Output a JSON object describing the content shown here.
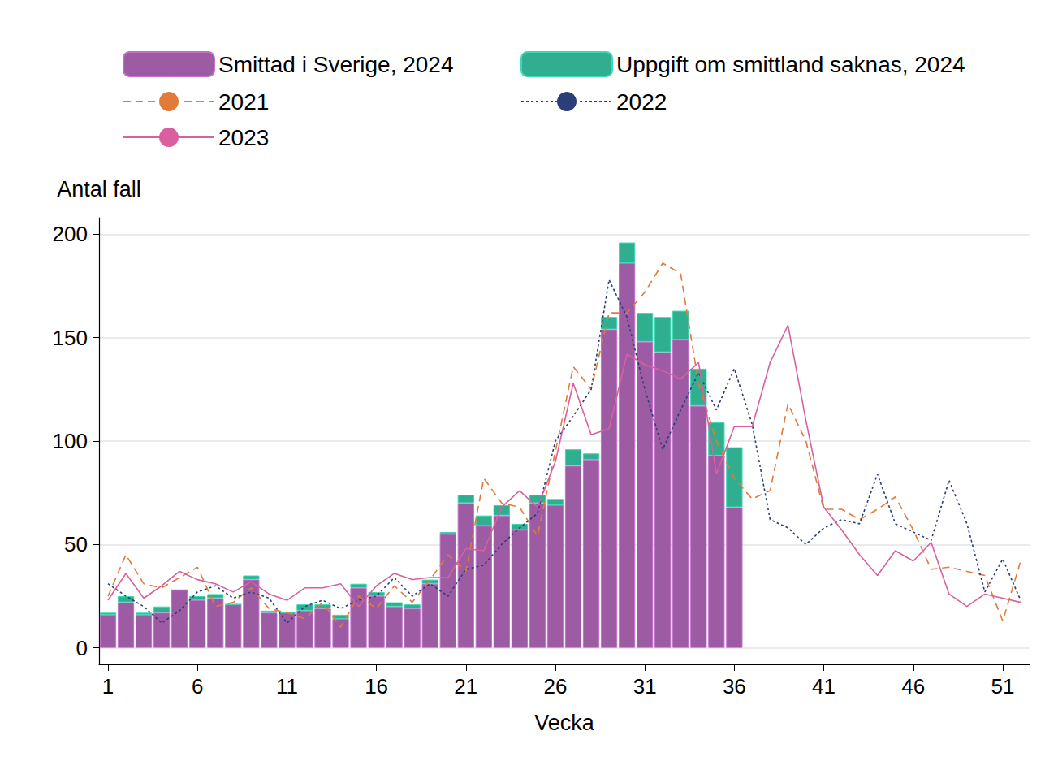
{
  "chart_data": {
    "type": "bar",
    "x_label": "Vecka",
    "y_label": "Antal fall",
    "categories": [
      1,
      null,
      null,
      null,
      null,
      6,
      null,
      null,
      null,
      null,
      11,
      null,
      null,
      null,
      null,
      16,
      null,
      null,
      null,
      null,
      21,
      null,
      null,
      null,
      null,
      26,
      null,
      null,
      null,
      null,
      31,
      null,
      null,
      null,
      null,
      36,
      null,
      null,
      null,
      null,
      41,
      null,
      null,
      null,
      null,
      46,
      null,
      null,
      null,
      null,
      51,
      null
    ],
    "stacked": true,
    "grid": true,
    "legend": "top",
    "ylim": [
      -8,
      208
    ],
    "yticks": [
      0,
      50,
      100,
      150,
      200
    ],
    "series": [
      {
        "name": "Smittad i Sverige, 2024",
        "type": "bar",
        "color": "#9c5ba2",
        "values": [
          16,
          22,
          16,
          17,
          28,
          23,
          24,
          21,
          33,
          17,
          17,
          18,
          19,
          14,
          29,
          25,
          20,
          19,
          31,
          55,
          70,
          59,
          64,
          57,
          70,
          69,
          88,
          91,
          154,
          186,
          148,
          143,
          149,
          117,
          93,
          68,
          null,
          null,
          null,
          null,
          null,
          null,
          null,
          null,
          null,
          null,
          null,
          null,
          null,
          null,
          null,
          null
        ]
      },
      {
        "name": "Uppgift om smittland saknas, 2024",
        "type": "bar",
        "color": "#2fae90",
        "values": [
          1,
          3,
          1,
          3,
          0,
          2,
          2,
          0,
          2,
          1,
          0,
          3,
          2,
          2,
          2,
          2,
          2,
          2,
          2,
          1,
          4,
          5,
          5,
          3,
          4,
          3,
          8,
          3,
          6,
          10,
          14,
          17,
          14,
          18,
          16,
          29,
          null,
          null,
          null,
          null,
          null,
          null,
          null,
          null,
          null,
          null,
          null,
          null,
          null,
          null,
          null,
          null
        ]
      },
      {
        "name": "2021",
        "type": "line",
        "color": "#e07b39",
        "line_style": "dashed",
        "values": [
          25,
          45,
          31,
          29,
          34,
          39,
          20,
          22,
          29,
          19,
          17,
          14,
          22,
          10,
          25,
          19,
          30,
          22,
          33,
          45,
          37,
          82,
          70,
          68,
          54,
          95,
          136,
          125,
          162,
          162,
          172,
          186,
          181,
          128,
          100,
          82,
          72,
          76,
          118,
          100,
          67,
          67,
          62,
          67,
          73,
          57,
          38,
          39,
          37,
          35,
          13,
          42
        ]
      },
      {
        "name": "2022",
        "type": "line",
        "color": "#2c3e7a",
        "line_style": "dotted",
        "values": [
          31,
          25,
          20,
          12,
          18,
          27,
          30,
          24,
          27,
          24,
          12,
          20,
          23,
          19,
          23,
          25,
          34,
          25,
          31,
          25,
          38,
          40,
          50,
          58,
          65,
          100,
          112,
          125,
          178,
          160,
          125,
          96,
          115,
          133,
          115,
          135,
          108,
          62,
          58,
          50,
          58,
          62,
          60,
          84,
          60,
          56,
          52,
          81,
          60,
          27,
          43,
          23
        ]
      },
      {
        "name": "2023",
        "type": "line",
        "color": "#d9609f",
        "line_style": "solid",
        "values": [
          23,
          36,
          24,
          30,
          37,
          33,
          31,
          27,
          32,
          26,
          23,
          29,
          29,
          31,
          20,
          30,
          36,
          33,
          34,
          34,
          48,
          47,
          68,
          76,
          68,
          90,
          128,
          103,
          106,
          142,
          137,
          134,
          130,
          138,
          84,
          107,
          107,
          138,
          156,
          110,
          68,
          57,
          45,
          35,
          47,
          42,
          51,
          26,
          20,
          26,
          24,
          22
        ]
      }
    ]
  }
}
